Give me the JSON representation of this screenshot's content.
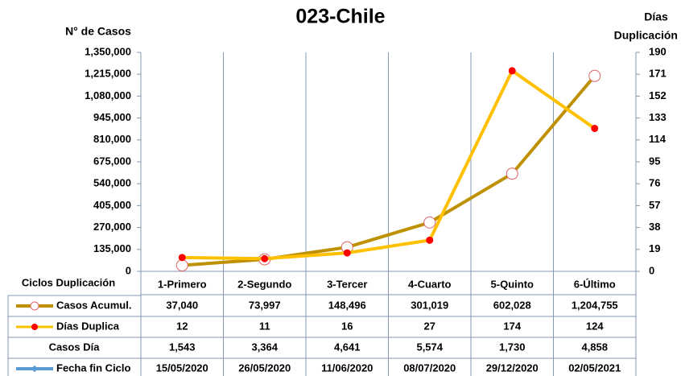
{
  "chart_data": {
    "type": "line",
    "title": "023-Chile",
    "y_label": "N° de Casos",
    "y2_label": [
      "Días",
      "Duplicación"
    ],
    "x_label": "Ciclos Duplicación",
    "categories": [
      "1-Primero",
      "2-Segundo",
      "3-Tercer",
      "4-Cuarto",
      "5-Quinto",
      "6-Último"
    ],
    "ylim": [
      0,
      1350000
    ],
    "yticks": [
      {
        "value": 0,
        "label": "0"
      },
      {
        "value": 135000,
        "label": "135,000"
      },
      {
        "value": 270000,
        "label": "270,000"
      },
      {
        "value": 405000,
        "label": "405,000"
      },
      {
        "value": 540000,
        "label": "540,000"
      },
      {
        "value": 675000,
        "label": "675,000"
      },
      {
        "value": 810000,
        "label": "810,000"
      },
      {
        "value": 945000,
        "label": "945,000"
      },
      {
        "value": 1080000,
        "label": "1,080,000"
      },
      {
        "value": 1215000,
        "label": "1,215,000"
      },
      {
        "value": 1350000,
        "label": "1,350,000"
      }
    ],
    "y2lim": [
      0,
      190
    ],
    "y2ticks": [
      0,
      19,
      38,
      57,
      76,
      95,
      114,
      133,
      152,
      171,
      190
    ],
    "series": [
      {
        "name": "Casos Acumul.",
        "color": "#bf9000",
        "values": [
          37040,
          73997,
          148496,
          301019,
          602028,
          1204755
        ],
        "value_labels": [
          "37,040",
          "73,997",
          "148,496",
          "301,019",
          "602,028",
          "1,204,755"
        ]
      },
      {
        "name": "Días Duplica",
        "color": "#ffc000",
        "axis": "y2",
        "values": [
          12,
          11,
          16,
          27,
          174,
          124
        ]
      },
      {
        "name": "Casos Día",
        "values": [
          1543,
          3364,
          4641,
          5574,
          1730,
          4858
        ],
        "value_labels": [
          "1,543",
          "3,364",
          "4,641",
          "5,574",
          "1,730",
          "4,858"
        ]
      },
      {
        "name": "Fecha fin Ciclo",
        "color": "#5b9bd5",
        "values": [
          "15/05/2020",
          "26/05/2020",
          "11/06/2020",
          "08/07/2020",
          "29/12/2020",
          "02/05/2021"
        ]
      }
    ]
  }
}
